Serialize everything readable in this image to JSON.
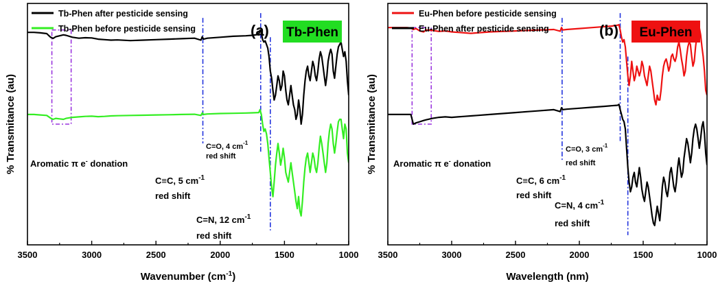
{
  "chart_data": [
    {
      "type": "line",
      "panel_label": "(a)",
      "badge": {
        "text": "Tb-Phen",
        "color": "#22dd22"
      },
      "xlabel_main": "Wavenumber (cm",
      "xlabel_sup": "-1",
      "xlabel_end": ")",
      "ylabel": "% Transmitance (au)",
      "xlim": [
        3500,
        1000
      ],
      "x_reversed": true,
      "ticks": [
        3500,
        3000,
        2500,
        2000,
        1500,
        1000
      ],
      "legend_position": "top-left",
      "series": [
        {
          "name": "Tb-Phen after pesticide sensing",
          "color": "#000000",
          "x": [
            3500,
            3450,
            3400,
            3350,
            3320,
            3300,
            3280,
            3250,
            3220,
            3200,
            3150,
            3100,
            3050,
            3000,
            2950,
            2900,
            2850,
            2800,
            2700,
            2600,
            2500,
            2400,
            2300,
            2200,
            2150,
            2140,
            2130,
            2100,
            2000,
            1900,
            1800,
            1750,
            1700,
            1690,
            1680,
            1670,
            1660,
            1650,
            1640,
            1630,
            1620,
            1610,
            1600,
            1590,
            1580,
            1570,
            1560,
            1550,
            1540,
            1530,
            1520,
            1510,
            1500,
            1490,
            1480,
            1470,
            1460,
            1450,
            1440,
            1430,
            1420,
            1410,
            1400,
            1390,
            1380,
            1370,
            1360,
            1350,
            1340,
            1330,
            1320,
            1310,
            1300,
            1290,
            1280,
            1270,
            1260,
            1250,
            1240,
            1230,
            1220,
            1210,
            1200,
            1190,
            1180,
            1170,
            1160,
            1150,
            1140,
            1130,
            1120,
            1110,
            1100,
            1090,
            1080,
            1070,
            1060,
            1050,
            1040,
            1030,
            1020,
            1010,
            1000
          ],
          "y": [
            0.88,
            0.88,
            0.878,
            0.875,
            0.86,
            0.855,
            0.862,
            0.866,
            0.87,
            0.868,
            0.86,
            0.856,
            0.858,
            0.857,
            0.852,
            0.85,
            0.848,
            0.849,
            0.846,
            0.848,
            0.85,
            0.852,
            0.854,
            0.856,
            0.848,
            0.862,
            0.852,
            0.856,
            0.86,
            0.864,
            0.866,
            0.868,
            0.872,
            0.89,
            0.878,
            0.85,
            0.84,
            0.845,
            0.83,
            0.815,
            0.78,
            0.72,
            0.69,
            0.64,
            0.6,
            0.62,
            0.66,
            0.7,
            0.68,
            0.64,
            0.66,
            0.72,
            0.7,
            0.64,
            0.6,
            0.58,
            0.62,
            0.66,
            0.62,
            0.58,
            0.56,
            0.52,
            0.54,
            0.6,
            0.56,
            0.5,
            0.54,
            0.62,
            0.68,
            0.72,
            0.74,
            0.7,
            0.68,
            0.72,
            0.76,
            0.74,
            0.7,
            0.68,
            0.72,
            0.77,
            0.8,
            0.78,
            0.74,
            0.7,
            0.66,
            0.7,
            0.76,
            0.79,
            0.81,
            0.79,
            0.72,
            0.69,
            0.74,
            0.79,
            0.82,
            0.83,
            0.84,
            0.81,
            0.78,
            0.8,
            0.76,
            0.68,
            0.62
          ]
        },
        {
          "name": "Tb-Phen before pesticide sensing",
          "color": "#33ee22",
          "x": [
            3500,
            3450,
            3400,
            3350,
            3320,
            3300,
            3280,
            3250,
            3220,
            3200,
            3150,
            3100,
            3050,
            3000,
            2950,
            2900,
            2850,
            2800,
            2700,
            2600,
            2500,
            2400,
            2300,
            2200,
            2150,
            2140,
            2130,
            2100,
            2000,
            1900,
            1800,
            1750,
            1700,
            1690,
            1680,
            1670,
            1660,
            1650,
            1640,
            1630,
            1620,
            1610,
            1600,
            1590,
            1580,
            1570,
            1560,
            1550,
            1540,
            1530,
            1520,
            1510,
            1500,
            1490,
            1480,
            1470,
            1460,
            1450,
            1440,
            1430,
            1420,
            1410,
            1400,
            1390,
            1380,
            1370,
            1360,
            1350,
            1340,
            1330,
            1320,
            1310,
            1300,
            1290,
            1280,
            1270,
            1260,
            1250,
            1240,
            1230,
            1220,
            1210,
            1200,
            1190,
            1180,
            1170,
            1160,
            1150,
            1140,
            1130,
            1120,
            1110,
            1100,
            1090,
            1080,
            1070,
            1060,
            1050,
            1040,
            1030,
            1020,
            1010,
            1000
          ],
          "y": [
            0.54,
            0.54,
            0.538,
            0.536,
            0.525,
            0.52,
            0.524,
            0.522,
            0.52,
            0.524,
            0.528,
            0.53,
            0.532,
            0.533,
            0.531,
            0.532,
            0.534,
            0.535,
            0.536,
            0.537,
            0.538,
            0.539,
            0.54,
            0.541,
            0.536,
            0.546,
            0.54,
            0.542,
            0.544,
            0.545,
            0.546,
            0.547,
            0.548,
            0.56,
            0.54,
            0.5,
            0.47,
            0.48,
            0.46,
            0.42,
            0.36,
            0.3,
            0.24,
            0.2,
            0.26,
            0.33,
            0.38,
            0.42,
            0.38,
            0.33,
            0.36,
            0.4,
            0.36,
            0.3,
            0.28,
            0.26,
            0.3,
            0.34,
            0.3,
            0.26,
            0.22,
            0.18,
            0.15,
            0.2,
            0.14,
            0.12,
            0.18,
            0.26,
            0.32,
            0.36,
            0.38,
            0.34,
            0.3,
            0.34,
            0.38,
            0.36,
            0.32,
            0.3,
            0.34,
            0.4,
            0.45,
            0.42,
            0.38,
            0.34,
            0.3,
            0.34,
            0.42,
            0.47,
            0.5,
            0.48,
            0.42,
            0.38,
            0.42,
            0.47,
            0.51,
            0.52,
            0.52,
            0.48,
            0.44,
            0.5,
            0.48,
            0.38,
            0.34
          ]
        }
      ],
      "vlines": [
        {
          "x": 2135,
          "y_top": 0.94,
          "y_bottom": 0.42
        },
        {
          "x": 1685,
          "y_top": 0.96,
          "y_bottom": 0.38
        },
        {
          "x": 1610,
          "y_top": 0.86,
          "y_bottom": 0.06
        }
      ],
      "highlight": {
        "x1": 3310,
        "x2": 3160,
        "y_top": 0.89,
        "y_bottom": 0.5
      },
      "annotations": [
        {
          "id": "aromatic",
          "text": "Aromatic π e",
          "sup": "-",
          "tail": " donation"
        },
        {
          "id": "cc",
          "lines": [
            "C≡C, 5 cm",
            "red shift"
          ],
          "sup": "-1"
        },
        {
          "id": "co",
          "lines": [
            "C=O, 4 cm",
            "red shift"
          ],
          "sup": "-1"
        },
        {
          "id": "cn",
          "lines": [
            "C=N, 12 cm",
            "red shift"
          ],
          "sup": "-1"
        }
      ]
    },
    {
      "type": "line",
      "panel_label": "(b)",
      "badge": {
        "text": "Eu-Phen",
        "color": "#ee1111"
      },
      "xlabel_main": "Wavelength (nm)",
      "xlabel_sup": "",
      "xlabel_end": "",
      "ylabel": "% Transmitance (au)",
      "xlim": [
        3500,
        1000
      ],
      "x_reversed": true,
      "ticks": [
        3500,
        3000,
        2500,
        2000,
        1500,
        1000
      ],
      "legend_position": "top-left",
      "series": [
        {
          "name": "Eu-Phen before pesticide sensing",
          "color": "#ee1111",
          "x": [
            3500,
            3450,
            3400,
            3350,
            3320,
            3300,
            3280,
            3250,
            3220,
            3200,
            3150,
            3100,
            3050,
            3000,
            2950,
            2900,
            2850,
            2800,
            2700,
            2600,
            2500,
            2400,
            2300,
            2200,
            2150,
            2140,
            2130,
            2100,
            2000,
            1900,
            1800,
            1750,
            1700,
            1690,
            1680,
            1670,
            1660,
            1650,
            1640,
            1630,
            1620,
            1610,
            1600,
            1590,
            1580,
            1570,
            1560,
            1550,
            1540,
            1530,
            1520,
            1510,
            1500,
            1490,
            1480,
            1470,
            1460,
            1450,
            1440,
            1430,
            1420,
            1410,
            1400,
            1390,
            1380,
            1370,
            1360,
            1350,
            1340,
            1330,
            1320,
            1310,
            1300,
            1290,
            1280,
            1270,
            1260,
            1250,
            1240,
            1230,
            1220,
            1210,
            1200,
            1190,
            1180,
            1170,
            1160,
            1150,
            1140,
            1130,
            1120,
            1110,
            1100,
            1090,
            1080,
            1070,
            1060,
            1050,
            1040,
            1030,
            1020,
            1010,
            1000
          ],
          "y": [
            0.9,
            0.9,
            0.9,
            0.9,
            0.898,
            0.892,
            0.896,
            0.886,
            0.882,
            0.89,
            0.888,
            0.884,
            0.886,
            0.882,
            0.88,
            0.878,
            0.876,
            0.878,
            0.882,
            0.884,
            0.886,
            0.888,
            0.89,
            0.892,
            0.885,
            0.9,
            0.89,
            0.892,
            0.896,
            0.9,
            0.904,
            0.906,
            0.91,
            0.912,
            0.89,
            0.86,
            0.84,
            0.85,
            0.82,
            0.76,
            0.7,
            0.66,
            0.7,
            0.76,
            0.72,
            0.68,
            0.7,
            0.74,
            0.72,
            0.7,
            0.72,
            0.76,
            0.74,
            0.7,
            0.68,
            0.66,
            0.7,
            0.74,
            0.72,
            0.68,
            0.64,
            0.6,
            0.58,
            0.62,
            0.6,
            0.6,
            0.64,
            0.7,
            0.74,
            0.76,
            0.77,
            0.75,
            0.72,
            0.74,
            0.78,
            0.79,
            0.77,
            0.76,
            0.78,
            0.82,
            0.84,
            0.81,
            0.77,
            0.74,
            0.7,
            0.72,
            0.78,
            0.82,
            0.84,
            0.83,
            0.78,
            0.74,
            0.76,
            0.82,
            0.86,
            0.88,
            0.9,
            0.87,
            0.82,
            0.78,
            0.72,
            0.64,
            0.62
          ]
        },
        {
          "name": "Eu-Phen after pesticide sensing",
          "color": "#000000",
          "x": [
            3500,
            3450,
            3400,
            3350,
            3320,
            3300,
            3280,
            3250,
            3220,
            3200,
            3150,
            3100,
            3050,
            3000,
            2950,
            2900,
            2850,
            2800,
            2700,
            2600,
            2500,
            2400,
            2300,
            2200,
            2150,
            2140,
            2130,
            2100,
            2000,
            1900,
            1800,
            1750,
            1700,
            1690,
            1680,
            1670,
            1660,
            1650,
            1640,
            1630,
            1620,
            1610,
            1600,
            1590,
            1580,
            1570,
            1560,
            1550,
            1540,
            1530,
            1520,
            1510,
            1500,
            1490,
            1480,
            1470,
            1460,
            1450,
            1440,
            1430,
            1420,
            1410,
            1400,
            1390,
            1380,
            1370,
            1360,
            1350,
            1340,
            1330,
            1320,
            1310,
            1300,
            1290,
            1280,
            1270,
            1260,
            1250,
            1240,
            1230,
            1220,
            1210,
            1200,
            1190,
            1180,
            1170,
            1160,
            1150,
            1140,
            1130,
            1120,
            1110,
            1100,
            1090,
            1080,
            1070,
            1060,
            1050,
            1040,
            1030,
            1020,
            1010,
            1000
          ],
          "y": [
            0.54,
            0.54,
            0.54,
            0.54,
            0.54,
            0.5,
            0.505,
            0.51,
            0.515,
            0.518,
            0.524,
            0.528,
            0.53,
            0.528,
            0.53,
            0.532,
            0.534,
            0.536,
            0.54,
            0.544,
            0.548,
            0.552,
            0.556,
            0.56,
            0.552,
            0.568,
            0.56,
            0.562,
            0.566,
            0.57,
            0.574,
            0.576,
            0.578,
            0.582,
            0.56,
            0.54,
            0.52,
            0.51,
            0.48,
            0.4,
            0.32,
            0.26,
            0.22,
            0.24,
            0.28,
            0.3,
            0.26,
            0.24,
            0.28,
            0.32,
            0.28,
            0.23,
            0.2,
            0.18,
            0.22,
            0.26,
            0.24,
            0.2,
            0.16,
            0.12,
            0.09,
            0.08,
            0.12,
            0.16,
            0.13,
            0.1,
            0.16,
            0.24,
            0.28,
            0.26,
            0.22,
            0.2,
            0.24,
            0.3,
            0.32,
            0.28,
            0.24,
            0.22,
            0.26,
            0.32,
            0.36,
            0.32,
            0.28,
            0.3,
            0.36,
            0.4,
            0.44,
            0.42,
            0.38,
            0.34,
            0.38,
            0.44,
            0.48,
            0.5,
            0.48,
            0.44,
            0.4,
            0.44,
            0.49,
            0.51,
            0.46,
            0.38,
            0.33
          ]
        }
      ],
      "vlines": [
        {
          "x": 2135,
          "y_top": 0.94,
          "y_bottom": 0.35
        },
        {
          "x": 1680,
          "y_top": 0.96,
          "y_bottom": 0.43
        },
        {
          "x": 1620,
          "y_top": 0.78,
          "y_bottom": 0.04
        }
      ],
      "highlight": {
        "x1": 3310,
        "x2": 3160,
        "y_top": 0.9,
        "y_bottom": 0.5
      },
      "annotations": [
        {
          "id": "aromatic",
          "text": "Aromatic π e",
          "sup": "-",
          "tail": " donation"
        },
        {
          "id": "cc",
          "lines": [
            "C≡C, 6 cm",
            "red shift"
          ],
          "sup": "-1"
        },
        {
          "id": "co",
          "lines": [
            "C=O, 3 cm",
            "red shift"
          ],
          "sup": "-1"
        },
        {
          "id": "cn",
          "lines": [
            "C=N, 4 cm",
            "red shift"
          ],
          "sup": "-1"
        }
      ]
    }
  ]
}
